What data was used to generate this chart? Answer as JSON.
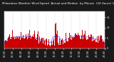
{
  "title_line1": "Milwaukee Weather Wind Speed",
  "title_line2": "Actual and Median  by Minute  (24 Hours) (Old)",
  "bg_color": "#1a1a1a",
  "plot_bg_color": "#ffffff",
  "actual_color": "#cc0000",
  "median_color": "#0000ff",
  "ylim": [
    0,
    18
  ],
  "n_points": 1440,
  "seed": 42,
  "title_fontsize": 3.0,
  "tick_fontsize": 2.5,
  "legend_fontsize": 2.8,
  "yticks": [
    0,
    5,
    10,
    15
  ],
  "ytick_labels": [
    "0",
    "5",
    "10",
    "15"
  ]
}
